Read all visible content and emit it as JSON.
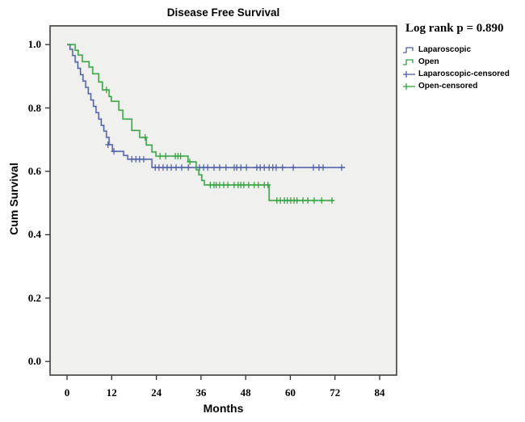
{
  "chart_data": {
    "type": "line",
    "variant": "kaplan-meier-step",
    "title": "Disease Free Survival",
    "xlabel": "Months",
    "ylabel": "Cum Survival",
    "annotation": "Log rank p = 0.890",
    "grid": false,
    "legend_position": "right-outside",
    "panel_bg": "#f0f0ee",
    "frame_color": "#3c3c3c",
    "xlim": [
      -4.56,
      88.55
    ],
    "ylim": [
      -0.043,
      1.059
    ],
    "x_ticks": [
      {
        "v": 0,
        "label": "0"
      },
      {
        "v": 12,
        "label": "12"
      },
      {
        "v": 24,
        "label": "24"
      },
      {
        "v": 36,
        "label": "36"
      },
      {
        "v": 48,
        "label": "48"
      },
      {
        "v": 60,
        "label": "60"
      },
      {
        "v": 72,
        "label": "72"
      },
      {
        "v": 84,
        "label": "84"
      }
    ],
    "y_ticks": [
      {
        "v": 0.0,
        "label": "0.0"
      },
      {
        "v": 0.2,
        "label": "0.2"
      },
      {
        "v": 0.4,
        "label": "0.4"
      },
      {
        "v": 0.6,
        "label": "0.6"
      },
      {
        "v": 0.8,
        "label": "0.8"
      },
      {
        "v": 1.0,
        "label": "1.0"
      }
    ],
    "series": [
      {
        "name": "Laparoscopic",
        "color": "#4f5fa8",
        "steps": [
          [
            0,
            1.0
          ],
          [
            0.8,
            0.985
          ],
          [
            1.5,
            0.965
          ],
          [
            2.2,
            0.945
          ],
          [
            2.9,
            0.925
          ],
          [
            3.6,
            0.905
          ],
          [
            4.3,
            0.885
          ],
          [
            5.0,
            0.865
          ],
          [
            5.7,
            0.845
          ],
          [
            6.4,
            0.825
          ],
          [
            7.1,
            0.805
          ],
          [
            7.8,
            0.785
          ],
          [
            8.5,
            0.765
          ],
          [
            9.2,
            0.745
          ],
          [
            9.9,
            0.727
          ],
          [
            10.6,
            0.707
          ],
          [
            11.3,
            0.684
          ],
          [
            12.2,
            0.663
          ],
          [
            15.2,
            0.65
          ],
          [
            16.3,
            0.638
          ],
          [
            22.8,
            0.612
          ],
          [
            74.7,
            0.612
          ]
        ],
        "censored": [
          [
            11.0,
            0.684
          ],
          [
            12.6,
            0.663
          ],
          [
            17.4,
            0.638
          ],
          [
            18.5,
            0.638
          ],
          [
            19.5,
            0.638
          ],
          [
            20.6,
            0.638
          ],
          [
            23.7,
            0.612
          ],
          [
            24.7,
            0.612
          ],
          [
            25.8,
            0.612
          ],
          [
            26.9,
            0.612
          ],
          [
            28.0,
            0.612
          ],
          [
            29.3,
            0.612
          ],
          [
            30.8,
            0.612
          ],
          [
            32.6,
            0.612
          ],
          [
            35.6,
            0.612
          ],
          [
            36.7,
            0.612
          ],
          [
            37.8,
            0.612
          ],
          [
            39.5,
            0.612
          ],
          [
            41.0,
            0.612
          ],
          [
            42.7,
            0.612
          ],
          [
            44.9,
            0.612
          ],
          [
            45.6,
            0.612
          ],
          [
            46.7,
            0.612
          ],
          [
            48.2,
            0.612
          ],
          [
            51.0,
            0.612
          ],
          [
            51.9,
            0.612
          ],
          [
            53.0,
            0.612
          ],
          [
            54.3,
            0.612
          ],
          [
            55.3,
            0.612
          ],
          [
            56.2,
            0.612
          ],
          [
            57.9,
            0.612
          ],
          [
            60.8,
            0.612
          ],
          [
            66.2,
            0.612
          ],
          [
            67.7,
            0.612
          ],
          [
            68.8,
            0.612
          ],
          [
            73.8,
            0.612
          ]
        ]
      },
      {
        "name": "Open",
        "color": "#32a13e",
        "steps": [
          [
            0,
            1.0
          ],
          [
            2.2,
            0.982
          ],
          [
            3.0,
            0.967
          ],
          [
            4.1,
            0.946
          ],
          [
            5.9,
            0.929
          ],
          [
            6.9,
            0.908
          ],
          [
            8.5,
            0.882
          ],
          [
            9.5,
            0.857
          ],
          [
            11.3,
            0.836
          ],
          [
            11.9,
            0.821
          ],
          [
            13.9,
            0.793
          ],
          [
            15.0,
            0.765
          ],
          [
            17.4,
            0.729
          ],
          [
            19.5,
            0.707
          ],
          [
            21.3,
            0.683
          ],
          [
            22.8,
            0.661
          ],
          [
            23.9,
            0.648
          ],
          [
            32.5,
            0.63
          ],
          [
            34.7,
            0.605
          ],
          [
            35.4,
            0.589
          ],
          [
            36.2,
            0.571
          ],
          [
            36.9,
            0.557
          ],
          [
            54.3,
            0.508
          ],
          [
            71.6,
            0.508
          ]
        ],
        "censored": [
          [
            10.6,
            0.857
          ],
          [
            21.0,
            0.707
          ],
          [
            25.0,
            0.648
          ],
          [
            26.5,
            0.648
          ],
          [
            29.1,
            0.648
          ],
          [
            29.8,
            0.648
          ],
          [
            30.5,
            0.648
          ],
          [
            33.0,
            0.63
          ],
          [
            38.5,
            0.557
          ],
          [
            39.5,
            0.557
          ],
          [
            40.1,
            0.557
          ],
          [
            41.0,
            0.557
          ],
          [
            42.1,
            0.557
          ],
          [
            43.2,
            0.557
          ],
          [
            44.9,
            0.557
          ],
          [
            46.0,
            0.557
          ],
          [
            46.7,
            0.557
          ],
          [
            47.5,
            0.557
          ],
          [
            48.8,
            0.557
          ],
          [
            50.3,
            0.557
          ],
          [
            51.4,
            0.557
          ],
          [
            53.0,
            0.557
          ],
          [
            54.0,
            0.557
          ],
          [
            56.4,
            0.508
          ],
          [
            57.3,
            0.508
          ],
          [
            58.4,
            0.508
          ],
          [
            59.2,
            0.508
          ],
          [
            60.1,
            0.508
          ],
          [
            61.0,
            0.508
          ],
          [
            61.8,
            0.508
          ],
          [
            63.4,
            0.508
          ],
          [
            64.7,
            0.508
          ],
          [
            66.4,
            0.508
          ],
          [
            68.4,
            0.508
          ],
          [
            71.2,
            0.508
          ]
        ]
      }
    ],
    "legend": [
      {
        "label": "Laparoscopic",
        "glyph": "step",
        "color": "#4f5fa8"
      },
      {
        "label": "Open",
        "glyph": "step",
        "color": "#32a13e"
      },
      {
        "label": "Laparoscopic-censored",
        "glyph": "censor",
        "color": "#4f5fa8"
      },
      {
        "label": "Open-censored",
        "glyph": "censor",
        "color": "#32a13e"
      }
    ]
  }
}
